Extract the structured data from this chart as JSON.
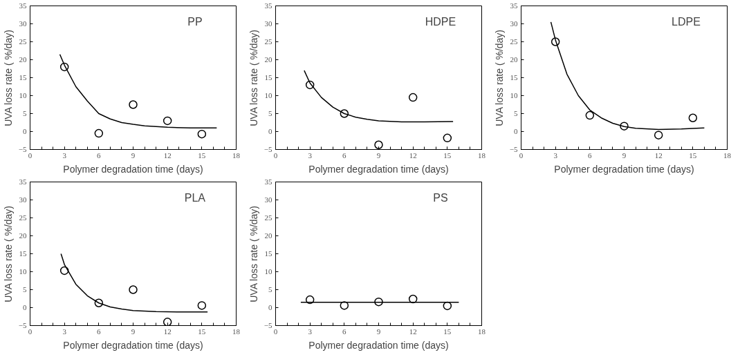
{
  "chart_data": [
    {
      "type": "scatter",
      "title": "PP",
      "xlabel": "Polymer degradation time (days)",
      "ylabel": "UVA loss rate ( %/day)",
      "xlim": [
        0,
        18
      ],
      "ylim": [
        -5,
        35
      ],
      "xticks": [
        0,
        3,
        6,
        9,
        12,
        15,
        18
      ],
      "yticks": [
        -5,
        0,
        5,
        10,
        15,
        20,
        25,
        30,
        35
      ],
      "grid": false,
      "line_style": "solid",
      "series": [
        {
          "marker": "circle",
          "color": "#000000",
          "x": [
            3,
            6,
            9,
            12,
            15
          ],
          "values": [
            18,
            -0.5,
            7.5,
            3,
            -0.7
          ]
        },
        {
          "type": "line",
          "color": "#000000",
          "x": [
            2.6,
            3,
            4,
            5,
            6,
            7,
            8,
            9,
            10,
            12,
            14,
            16.3
          ],
          "values": [
            21.5,
            18.5,
            12.5,
            8.5,
            5,
            3.5,
            2.5,
            2,
            1.6,
            1.2,
            1,
            1
          ]
        }
      ]
    },
    {
      "type": "scatter",
      "title": "HDPE",
      "xlabel": "Polymer degradation time (days)",
      "ylabel": "UVA loss rate ( %/day)",
      "xlim": [
        0,
        18
      ],
      "ylim": [
        -5,
        35
      ],
      "xticks": [
        0,
        3,
        6,
        9,
        12,
        15,
        18
      ],
      "yticks": [
        -5,
        0,
        5,
        10,
        15,
        20,
        25,
        30,
        35
      ],
      "grid": false,
      "line_style": "solid",
      "series": [
        {
          "marker": "circle",
          "color": "#000000",
          "x": [
            3,
            6,
            9,
            12,
            15
          ],
          "values": [
            13,
            5,
            -3.7,
            9.5,
            -1.8
          ]
        },
        {
          "type": "line",
          "color": "#000000",
          "x": [
            2.5,
            3,
            4,
            5,
            6,
            7,
            8,
            9,
            11,
            13,
            15.5
          ],
          "values": [
            17,
            13.5,
            9.5,
            6.8,
            5,
            4,
            3.4,
            3,
            2.7,
            2.7,
            2.8
          ]
        }
      ]
    },
    {
      "type": "scatter",
      "title": "LDPE",
      "xlabel": "Polymer degradation time (days)",
      "ylabel": "UVA loss rate ( %/day)",
      "xlim": [
        0,
        18
      ],
      "ylim": [
        -5,
        35
      ],
      "xticks": [
        0,
        3,
        6,
        9,
        12,
        15,
        18
      ],
      "yticks": [
        -5,
        0,
        5,
        10,
        15,
        20,
        25,
        30,
        35
      ],
      "grid": false,
      "line_style": "solid",
      "series": [
        {
          "marker": "circle",
          "color": "#000000",
          "x": [
            3,
            6,
            9,
            12,
            15
          ],
          "values": [
            25,
            4.5,
            1.5,
            -1,
            3.8
          ]
        },
        {
          "type": "line",
          "color": "#000000",
          "x": [
            2.6,
            3,
            4,
            5,
            6,
            7,
            8,
            9,
            10,
            12,
            14,
            16
          ],
          "values": [
            30.5,
            25.5,
            16,
            10,
            6,
            3.8,
            2.3,
            1.4,
            0.9,
            0.6,
            0.7,
            1
          ]
        }
      ]
    },
    {
      "type": "scatter",
      "title": "PLA",
      "xlabel": "Polymer degradation time (days)",
      "ylabel": "UVA loss rate ( %/day)",
      "xlim": [
        0,
        18
      ],
      "ylim": [
        -5,
        35
      ],
      "xticks": [
        0,
        3,
        6,
        9,
        12,
        15,
        18
      ],
      "yticks": [
        -5,
        0,
        5,
        10,
        15,
        20,
        25,
        30,
        35
      ],
      "grid": false,
      "line_style": "solid",
      "series": [
        {
          "marker": "circle",
          "color": "#000000",
          "x": [
            3,
            6,
            9,
            12,
            15
          ],
          "values": [
            10.3,
            1.3,
            5,
            -4,
            0.6
          ]
        },
        {
          "type": "line",
          "color": "#000000",
          "x": [
            2.7,
            3,
            4,
            5,
            6,
            7,
            8,
            9,
            11,
            13,
            15.5
          ],
          "values": [
            15,
            12,
            6.5,
            3.3,
            1.3,
            0.2,
            -0.4,
            -0.8,
            -1.1,
            -1.2,
            -1.2
          ]
        }
      ]
    },
    {
      "type": "scatter",
      "title": "PS",
      "xlabel": "Polymer degradation time (days)",
      "ylabel": "UVA loss rate ( %/day)",
      "xlim": [
        0,
        18
      ],
      "ylim": [
        -5,
        35
      ],
      "xticks": [
        0,
        3,
        6,
        9,
        12,
        15,
        18
      ],
      "yticks": [
        -5,
        0,
        5,
        10,
        15,
        20,
        25,
        30,
        35
      ],
      "grid": false,
      "line_style": "solid",
      "series": [
        {
          "marker": "circle",
          "color": "#000000",
          "x": [
            3,
            6,
            9,
            12,
            15
          ],
          "values": [
            2.2,
            0.6,
            1.6,
            2.4,
            0.5
          ]
        },
        {
          "type": "line",
          "color": "#000000",
          "x": [
            2.2,
            16
          ],
          "values": [
            1.5,
            1.5
          ]
        }
      ]
    }
  ]
}
